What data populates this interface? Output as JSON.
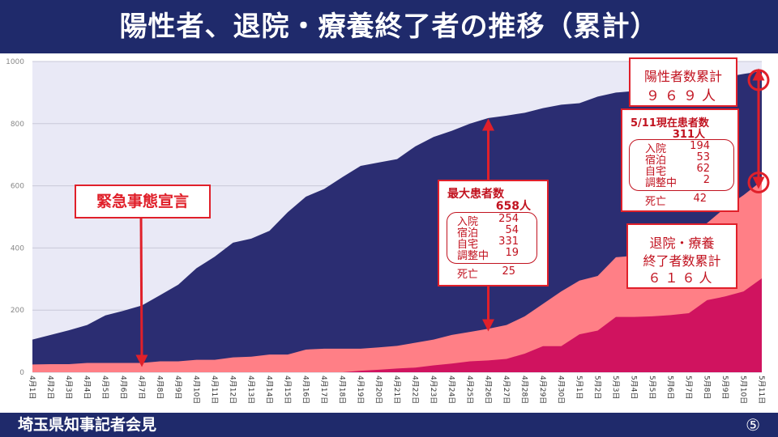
{
  "header": {
    "title": "陽性者、退院・療養終了者の推移（累計）"
  },
  "footer": {
    "text": "埼玉県知事記者会見",
    "page_number": "⑤"
  },
  "annotations": {
    "emergency": "緊急事態宣言",
    "max_patients": {
      "title": "最大患者数",
      "value": "658人",
      "rows": [
        {
          "k": "入院",
          "v": "254"
        },
        {
          "k": "宿泊",
          "v": "54"
        },
        {
          "k": "自宅",
          "v": "331"
        },
        {
          "k": "調整中",
          "v": "19"
        }
      ],
      "death_label": "死亡",
      "death_value": "25"
    },
    "current": {
      "title": "5/11現在患者数",
      "value": "311人",
      "rows": [
        {
          "k": "入院",
          "v": "194"
        },
        {
          "k": "宿泊",
          "v": "53"
        },
        {
          "k": "自宅",
          "v": "62"
        },
        {
          "k": "調整中",
          "v": "2"
        }
      ],
      "death_label": "死亡",
      "death_value": "42"
    },
    "positive_total": {
      "line1": "陽性者数累計",
      "line2": "９６９人"
    },
    "recovered_total": {
      "line1": "退院・療養",
      "line2": "終了者数累計",
      "line3": "６１６人"
    }
  },
  "colors": {
    "positive": "#2b2d72",
    "patients": "#ff7f86",
    "recovered": "#d0135f",
    "background": "#e9e9f6",
    "accent": "#e0202a"
  },
  "chart_data": {
    "type": "area",
    "title": "陽性者、退院・療養終了者の推移（累計）",
    "ylim": [
      0,
      1000
    ],
    "yticks": [
      0,
      200,
      400,
      600,
      800,
      1000
    ],
    "grid": true,
    "x": [
      "4月1日",
      "4月2日",
      "4月3日",
      "4月4日",
      "4月5日",
      "4月6日",
      "4月7日",
      "4月8日",
      "4月9日",
      "4月10日",
      "4月11日",
      "4月12日",
      "4月13日",
      "4月14日",
      "4月15日",
      "4月16日",
      "4月17日",
      "4月18日",
      "4月19日",
      "4月20日",
      "4月21日",
      "4月22日",
      "4月23日",
      "4月24日",
      "4月25日",
      "4月26日",
      "4月27日",
      "4月28日",
      "4月29日",
      "4月30日",
      "5月1日",
      "5月2日",
      "5月3日",
      "5月4日",
      "5月5日",
      "5月6日",
      "5月7日",
      "5月8日",
      "5月9日",
      "5月10日",
      "5月11日"
    ],
    "series": [
      {
        "values": [
          105,
          120,
          135,
          152,
          183,
          198,
          215,
          248,
          282,
          335,
          372,
          417,
          430,
          455,
          515,
          565,
          590,
          628,
          664,
          675,
          686,
          727,
          757,
          777,
          800,
          818,
          826,
          835,
          850,
          861,
          866,
          887,
          900,
          905,
          912,
          920,
          930,
          938,
          950,
          960,
          969
        ]
      },
      {
        "values": [
          25,
          26,
          26,
          30,
          30,
          30,
          30,
          35,
          35,
          40,
          40,
          48,
          50,
          57,
          57,
          73,
          76,
          76,
          76,
          80,
          85,
          95,
          105,
          120,
          130,
          140,
          152,
          180,
          220,
          260,
          295,
          310,
          370,
          375,
          395,
          420,
          450,
          480,
          530,
          570,
          616
        ]
      },
      {
        "values": [
          0,
          0,
          0,
          0,
          0,
          0,
          0,
          0,
          0,
          0,
          0,
          0,
          0,
          0,
          0,
          0,
          0,
          0,
          5,
          8,
          12,
          15,
          22,
          28,
          35,
          38,
          43,
          60,
          84,
          84,
          122,
          134,
          178,
          178,
          180,
          184,
          190,
          232,
          244,
          260,
          302
        ]
      }
    ]
  }
}
